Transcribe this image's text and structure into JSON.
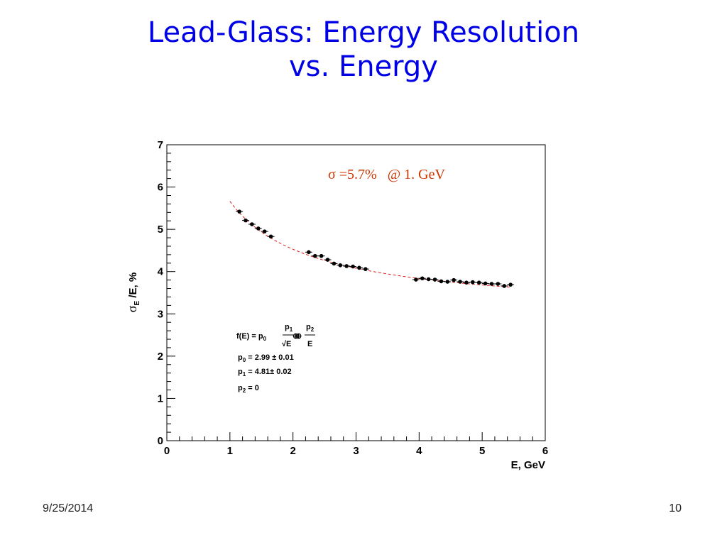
{
  "slide": {
    "title_line1": "Lead-Glass: Energy Resolution",
    "title_line2": "vs. Energy",
    "date": "9/25/2014",
    "page": "10"
  },
  "chart_data": {
    "type": "scatter",
    "xlabel": "E, GeV",
    "ylabel_parts": {
      "sigma": "σ",
      "sub": "E",
      "rest": " /E, %"
    },
    "xlim": [
      0,
      6
    ],
    "ylim": [
      0,
      7
    ],
    "xticks": [
      "0",
      "1",
      "2",
      "3",
      "4",
      "5",
      "6"
    ],
    "yticks": [
      "0",
      "1",
      "2",
      "3",
      "4",
      "5",
      "6",
      "7"
    ],
    "annotation": "σ =5.7%   @ 1. GeV",
    "fit": {
      "formula_prefix": "f(E) = p",
      "formula_p0_sub": "0",
      "oplus": "⊕",
      "frac1_num": "p",
      "frac1_num_sub": "1",
      "frac1_den": "√E",
      "frac2_num": "p",
      "frac2_num_sub": "2",
      "frac2_den": "E",
      "params": [
        {
          "name": "p",
          "sub": "0",
          "text": " = 2.99 ± 0.01"
        },
        {
          "name": "p",
          "sub": "1",
          "text": " = 4.81± 0.02"
        },
        {
          "name": "p",
          "sub": "2",
          "text": " = 0"
        }
      ],
      "p0": 2.99,
      "p1": 4.81,
      "p2": 0,
      "range": [
        1.0,
        5.45
      ],
      "color": "#e02020"
    },
    "series": [
      {
        "marker_color": "#000000",
        "x": [
          1.15,
          1.25,
          1.35,
          1.45,
          1.55,
          1.65,
          2.25,
          2.35,
          2.45,
          2.55,
          2.65,
          2.75,
          2.85,
          2.95,
          3.05,
          3.15,
          3.95,
          4.05,
          4.15,
          4.25,
          4.35,
          4.45,
          4.55,
          4.65,
          4.75,
          4.85,
          4.95,
          5.05,
          5.15,
          5.25,
          5.35,
          5.45
        ],
        "y": [
          5.42,
          5.21,
          5.12,
          5.02,
          4.95,
          4.83,
          4.46,
          4.37,
          4.37,
          4.28,
          4.19,
          4.15,
          4.13,
          4.12,
          4.09,
          4.06,
          3.81,
          3.84,
          3.82,
          3.81,
          3.77,
          3.76,
          3.8,
          3.76,
          3.74,
          3.75,
          3.74,
          3.72,
          3.71,
          3.71,
          3.66,
          3.69
        ]
      }
    ]
  }
}
